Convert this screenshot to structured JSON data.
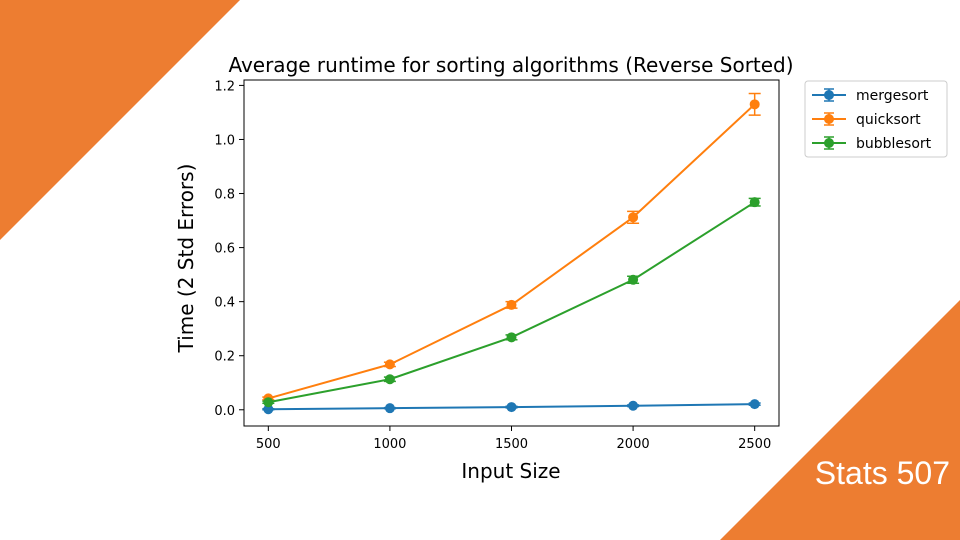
{
  "slide": {
    "brand": "Stats 507",
    "accent_color": "#ED7D31"
  },
  "chart_data": {
    "type": "line",
    "title": "Average runtime for sorting algorithms (Reverse Sorted)",
    "xlabel": "Input Size",
    "ylabel": "Time (2 Std Errors)",
    "x": [
      500,
      1000,
      1500,
      2000,
      2500
    ],
    "xticks": [
      "500",
      "1000",
      "1500",
      "2000",
      "2500"
    ],
    "yticks": [
      "0.0",
      "0.2",
      "0.4",
      "0.6",
      "0.8",
      "1.0",
      "1.2"
    ],
    "xlim": [
      400,
      2600
    ],
    "ylim": [
      -0.06,
      1.22
    ],
    "grid": false,
    "legend_position": "outside-top-right",
    "series": [
      {
        "name": "mergesort",
        "color": "#1f77b4",
        "values": [
          0.002,
          0.006,
          0.01,
          0.015,
          0.021
        ],
        "errors": [
          0.002,
          0.002,
          0.003,
          0.003,
          0.004
        ]
      },
      {
        "name": "quicksort",
        "color": "#ff7f0e",
        "values": [
          0.042,
          0.168,
          0.388,
          0.712,
          1.13
        ],
        "errors": [
          0.005,
          0.008,
          0.012,
          0.022,
          0.04
        ]
      },
      {
        "name": "bubblesort",
        "color": "#2ca02c",
        "values": [
          0.028,
          0.113,
          0.268,
          0.481,
          0.768
        ],
        "errors": [
          0.004,
          0.008,
          0.009,
          0.013,
          0.014
        ]
      }
    ]
  }
}
